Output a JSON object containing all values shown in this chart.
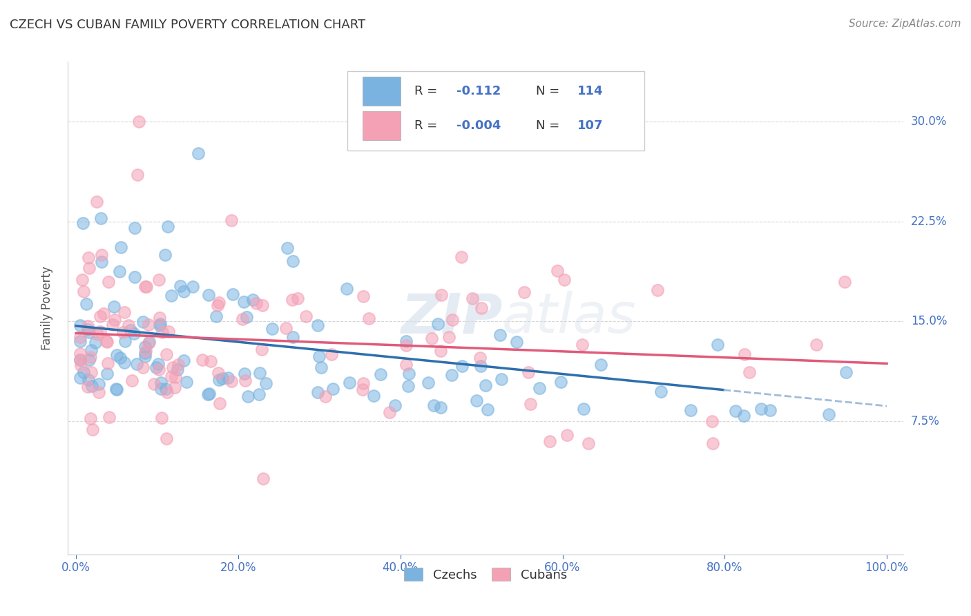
{
  "title": "CZECH VS CUBAN FAMILY POVERTY CORRELATION CHART",
  "source": "Source: ZipAtlas.com",
  "ylabel": "Family Poverty",
  "czech_color": "#7ab3e0",
  "cuban_color": "#f4a0b5",
  "czech_R": -0.112,
  "czech_N": 114,
  "cuban_R": -0.004,
  "cuban_N": 107,
  "bg_color": "#ffffff",
  "grid_color": "#cccccc",
  "title_color": "#333333",
  "tick_color": "#4472c4",
  "regression_blue_color": "#2e6fad",
  "regression_pink_color": "#e05a7a",
  "regression_dashed_color": "#a0bcd8",
  "watermark_color": "#d0dce8"
}
